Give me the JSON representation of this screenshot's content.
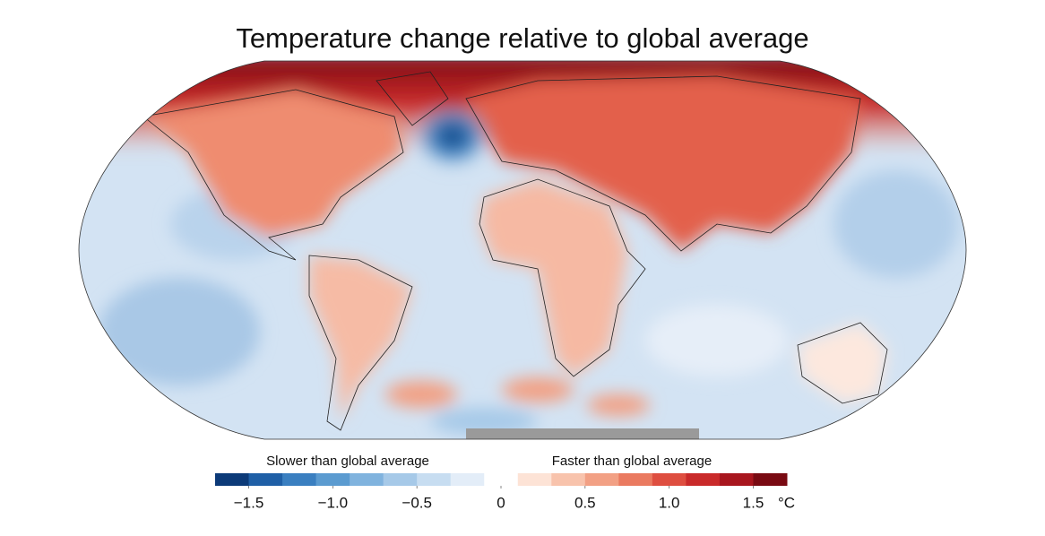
{
  "map": {
    "title": "Temperature change relative to global average",
    "colorbar": {
      "label_left": "Slower than global average",
      "label_right": "Faster than global average",
      "unit": "°C",
      "bins": [
        -1.7,
        -1.5,
        -1.3,
        -1.1,
        -0.9,
        -0.7,
        -0.5,
        -0.3,
        -0.1,
        0.1,
        0.3,
        0.5,
        0.7,
        0.9,
        1.1,
        1.3,
        1.5,
        1.7
      ],
      "colors": [
        "#0c3a78",
        "#1f5fa6",
        "#3a7fc0",
        "#5b9bd0",
        "#80b3de",
        "#a6c9e8",
        "#c7ddf1",
        "#e3edf8",
        "#ffffff",
        "#fde3d6",
        "#f8c3ac",
        "#f2a084",
        "#ea7a60",
        "#de4e40",
        "#c92a2a",
        "#a8161e",
        "#790a12"
      ],
      "ticks": [
        {
          "value": -1.5,
          "label": "−1.5"
        },
        {
          "value": -1.0,
          "label": "−1.0"
        },
        {
          "value": -0.5,
          "label": "−0.5"
        },
        0,
        0.5,
        {
          "value": 1.0,
          "label": "1.0"
        },
        1.5
      ]
    }
  }
}
